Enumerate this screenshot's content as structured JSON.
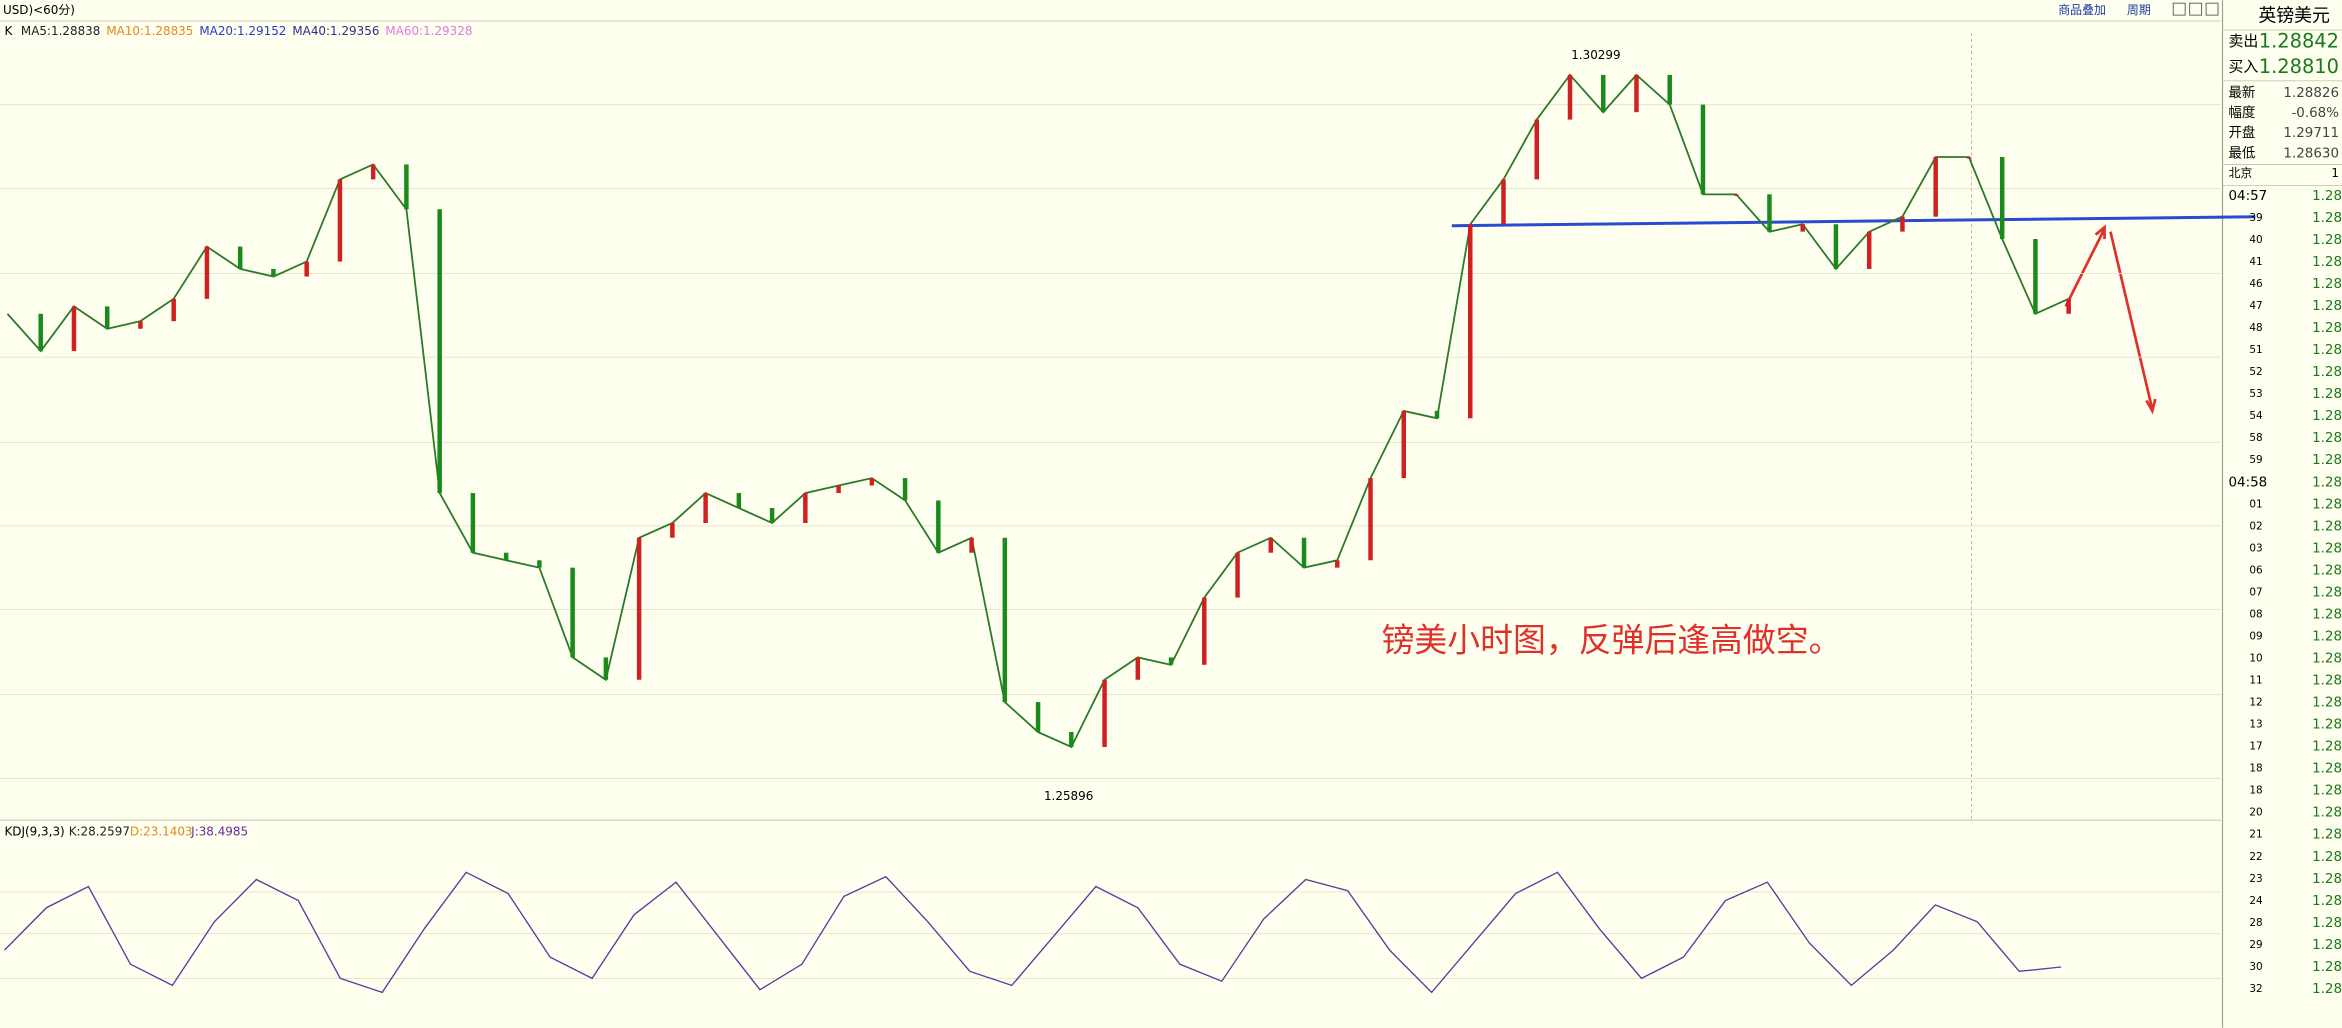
{
  "header": {
    "symbol": "USD)<60分)",
    "menu": [
      "商品叠加",
      "周期"
    ]
  },
  "main_chart": {
    "indicator": "K",
    "ma": [
      {
        "label": "MA5:1.28838",
        "color": "#222222"
      },
      {
        "label": "MA10:1.28835",
        "color": "#e08a1e"
      },
      {
        "label": "MA20:1.29152",
        "color": "#2a3cc8"
      },
      {
        "label": "MA40:1.29356",
        "color": "#3a2a8a"
      },
      {
        "label": "MA60:1.29328",
        "color": "#e07ae0"
      }
    ],
    "ylim": [
      1.25756,
      1.30503
    ],
    "close": [
      1.28761,
      1.28539,
      1.28805,
      1.28672,
      1.28717,
      1.2885,
      1.29161,
      1.29028,
      1.28983,
      1.29072,
      1.29561,
      1.2965,
      1.29383,
      1.27694,
      1.27339,
      1.27294,
      1.2725,
      1.26716,
      1.26583,
      1.27428,
      1.27516,
      1.27694,
      1.27605,
      1.27516,
      1.27694,
      1.27739,
      1.27783,
      1.2765,
      1.27339,
      1.27428,
      1.2645,
      1.26272,
      1.26183,
      1.26583,
      1.26716,
      1.26672,
      1.27072,
      1.27339,
      1.27428,
      1.2725,
      1.27294,
      1.27783,
      1.28183,
      1.28139,
      1.29294,
      1.29561,
      1.29917,
      1.30183,
      1.29961,
      1.30183,
      1.30006,
      1.29472,
      1.29472,
      1.2925,
      1.29294,
      1.29028,
      1.2925,
      1.29339,
      1.29694,
      1.29694,
      1.29206,
      1.28761,
      1.2885
    ],
    "high_label": "1.30299",
    "low_label": "1.25896",
    "annotation": "镑美小时图，反弹后逢高做空。"
  },
  "kdj": {
    "label": "KDJ(9,3,3)",
    "k_label": "K:28.2597",
    "d_label": "D:23.1403",
    "j_label": "J:38.4985",
    "ylim": [
      -15,
      115
    ],
    "k": [
      40,
      70,
      85,
      30,
      15,
      60,
      90,
      75,
      20,
      10,
      55,
      95,
      80,
      35,
      20,
      65,
      88,
      50,
      12,
      30,
      78,
      92,
      60,
      25,
      15,
      50,
      85,
      70,
      30,
      18,
      62,
      90,
      82,
      40,
      10,
      45,
      80,
      95,
      55,
      20,
      35,
      75,
      88,
      45,
      15,
      40,
      72,
      60,
      25,
      28
    ]
  },
  "quote": {
    "title": "英镑美元",
    "rows": [
      {
        "label": "卖出",
        "value": "1.28842"
      },
      {
        "label": "买入",
        "value": "1.28810"
      },
      {
        "label": "最新",
        "value": "1.28826"
      },
      {
        "label": "幅度",
        "value": "-0.68%"
      },
      {
        "label": "开盘",
        "value": "1.29711"
      },
      {
        "label": "最低",
        "value": "1.28630"
      }
    ],
    "time_label": "北京",
    "time_extra": "1",
    "ticks": [
      {
        "time": "04:57",
        "price": "1.28"
      },
      {
        "time": "39",
        "price": "1.28"
      },
      {
        "time": "40",
        "price": "1.28"
      },
      {
        "time": "41",
        "price": "1.28"
      },
      {
        "time": "46",
        "price": "1.28"
      },
      {
        "time": "47",
        "price": "1.28"
      },
      {
        "time": "48",
        "price": "1.28"
      },
      {
        "time": "51",
        "price": "1.28"
      },
      {
        "time": "52",
        "price": "1.28"
      },
      {
        "time": "53",
        "price": "1.28"
      },
      {
        "time": "54",
        "price": "1.28"
      },
      {
        "time": "58",
        "price": "1.28"
      },
      {
        "time": "59",
        "price": "1.28"
      },
      {
        "time": "04:58",
        "price": "1.28"
      },
      {
        "time": "01",
        "price": "1.28"
      },
      {
        "time": "02",
        "price": "1.28"
      },
      {
        "time": "03",
        "price": "1.28"
      },
      {
        "time": "06",
        "price": "1.28"
      },
      {
        "time": "07",
        "price": "1.28"
      },
      {
        "time": "08",
        "price": "1.28"
      },
      {
        "time": "09",
        "price": "1.28"
      },
      {
        "time": "10",
        "price": "1.28"
      },
      {
        "time": "11",
        "price": "1.28"
      },
      {
        "time": "12",
        "price": "1.28"
      },
      {
        "time": "13",
        "price": "1.28"
      },
      {
        "time": "17",
        "price": "1.28"
      },
      {
        "time": "18",
        "price": "1.28"
      },
      {
        "time": "18",
        "price": "1.28"
      },
      {
        "time": "20",
        "price": "1.28"
      },
      {
        "time": "21",
        "price": "1.28"
      },
      {
        "time": "22",
        "price": "1.28"
      },
      {
        "time": "23",
        "price": "1.28"
      },
      {
        "time": "24",
        "price": "1.28"
      },
      {
        "time": "28",
        "price": "1.28"
      },
      {
        "time": "29",
        "price": "1.28"
      },
      {
        "time": "30",
        "price": "1.28"
      },
      {
        "time": "32",
        "price": "1.28"
      }
    ]
  }
}
